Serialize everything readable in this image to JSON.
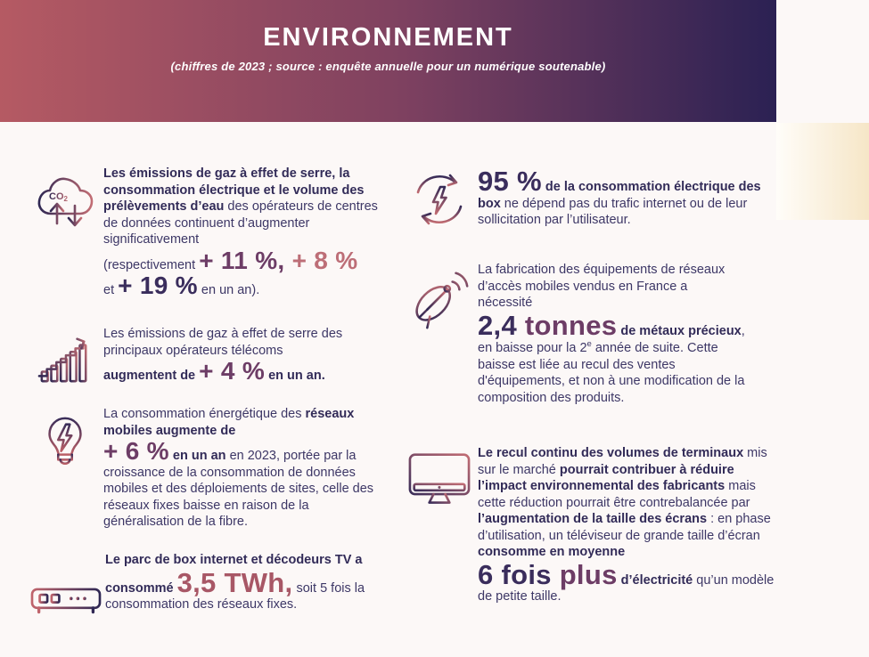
{
  "header": {
    "title": "ENVIRONNEMENT",
    "subtitle": "(chiffres de 2023 ; source : enquête annuelle pour un numérique soutenable)",
    "gradient_left": "#b55a63",
    "gradient_right": "#2b2153"
  },
  "accent_band": {
    "color_left": "#fffdf9",
    "color_right": "#f6e6c7"
  },
  "colors": {
    "body_text": "#3d3766",
    "bold_text": "#322b58",
    "big_purple": "#3a2d5c",
    "big_plum": "#6d3d66",
    "big_rose": "#bd6e77",
    "big_wine": "#a85766"
  },
  "items": {
    "left": [
      {
        "icon": "co2-cloud-icon",
        "segments": [
          {
            "t": "Les émissions de gaz à effet de serre, la consommation électrique et le volume des prélèvements d’eau ",
            "s": "b"
          },
          {
            "t": "des opérateurs de centres de données continuent d’augmenter significativement",
            "s": "r"
          },
          {
            "br": true
          },
          {
            "t": "(respectivement ",
            "s": "r"
          },
          {
            "t": "+ 11 %,",
            "s": "big plum"
          },
          {
            "t": " + 8 %",
            "s": "big rose"
          },
          {
            "br": true
          },
          {
            "t": "et ",
            "s": "r"
          },
          {
            "t": "+ 19 %",
            "s": "big purple"
          },
          {
            "t": " en un an).",
            "s": "r"
          }
        ]
      },
      {
        "icon": "growth-chart-icon",
        "segments": [
          {
            "t": "Les émissions de gaz à effet de serre des principaux opérateurs télécoms",
            "s": "r"
          },
          {
            "br": true
          },
          {
            "t": "augmentent de ",
            "s": "b"
          },
          {
            "t": "+ 4 %",
            "s": "big plum"
          },
          {
            "t": " en un an.",
            "s": "b"
          }
        ]
      },
      {
        "icon": "bulb-energy-icon",
        "segments": [
          {
            "t": "La consommation énergétique des ",
            "s": "r"
          },
          {
            "t": "réseaux mobiles augmente de",
            "s": "b"
          },
          {
            "br": true
          },
          {
            "t": "+ 6 %",
            "s": "big plum"
          },
          {
            "t": " en un an",
            "s": "b"
          },
          {
            "t": " en 2023, portée par la croissance de la consommation de données mobiles et des déploiements de sites, celle des réseaux fixes baisse en raison de la généralisation de la fibre.",
            "s": "r"
          }
        ]
      },
      {
        "icon": "internet-box-icon",
        "segments": [
          {
            "t": "Le parc de box internet et décodeurs TV a consommé ",
            "s": "b"
          },
          {
            "t": "3,5 TWh,",
            "s": "bigger wine"
          },
          {
            "t": " soit 5 fois la consommation des réseaux fixes.",
            "s": "r"
          }
        ]
      }
    ],
    "right": [
      {
        "icon": "energy-cycle-icon",
        "segments": [
          {
            "t": "95 %",
            "s": "bigger purple"
          },
          {
            "t": " de la consommation électrique des box",
            "s": "b"
          },
          {
            "t": " ne dépend pas du trafic internet ou de leur sollicitation par l’utilisateur.",
            "s": "r"
          }
        ]
      },
      {
        "icon": "satellite-dish-icon",
        "segments": [
          {
            "t": "La fabrication des équipements de réseaux d’accès mobiles vendus en France a nécessité",
            "s": "r"
          },
          {
            "br": true
          },
          {
            "t": "2,4",
            "s": "bigger purple"
          },
          {
            "t": " tonnes",
            "s": "bigger plum"
          },
          {
            "t": " de métaux précieux",
            "s": "b"
          },
          {
            "t": ", en baisse pour la 2",
            "s": "r"
          },
          {
            "t": "e",
            "s": "sup"
          },
          {
            "t": " année de suite. Cette baisse est liée au recul des ventes d'équipements, et non à une modification de la composition des produits.",
            "s": "r"
          }
        ]
      },
      {
        "icon": "screen-icon",
        "segments": [
          {
            "t": "Le recul continu des volumes de terminaux ",
            "s": "b"
          },
          {
            "t": "mis sur le marché ",
            "s": "r"
          },
          {
            "t": "pourrait contribuer à réduire l’impact environnemental des fabricants ",
            "s": "b"
          },
          {
            "t": "mais cette réduction pourrait être contrebalancée par ",
            "s": "r"
          },
          {
            "t": "l’augmentation de la taille des écrans",
            "s": "b"
          },
          {
            "t": " : en phase d’utilisation, un téléviseur de grande taille d’écran ",
            "s": "r"
          },
          {
            "t": "consomme en moyenne",
            "s": "b"
          },
          {
            "br": true
          },
          {
            "t": "6 fois",
            "s": "bigger purple"
          },
          {
            "t": " plus",
            "s": "bigger plum"
          },
          {
            "t": " d’électricité",
            "s": "b"
          },
          {
            "t": " qu’un modèle de petite taille.",
            "s": "r"
          }
        ]
      }
    ]
  }
}
